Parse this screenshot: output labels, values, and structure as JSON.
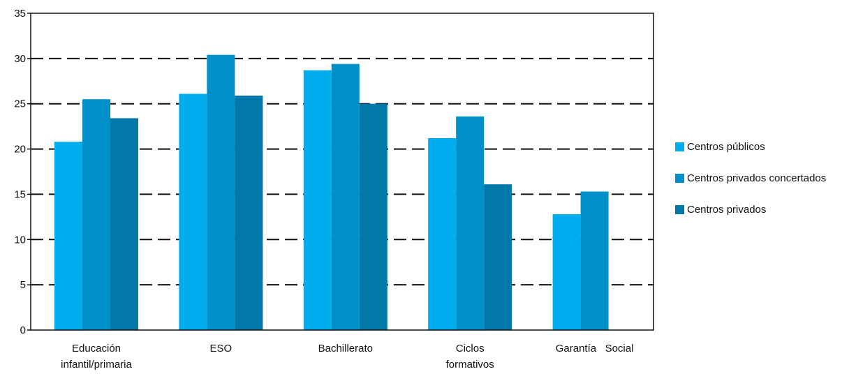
{
  "chart_data": {
    "type": "bar",
    "categories": [
      [
        "Educación",
        "infantil/primaria"
      ],
      [
        "ESO"
      ],
      [
        "Bachillerato"
      ],
      [
        "Ciclos",
        "formativos"
      ],
      [
        "Garantía   Social"
      ]
    ],
    "series": [
      {
        "name": "Centros públicos",
        "color": "#00aeef",
        "values": [
          20.8,
          26.1,
          28.7,
          21.2,
          12.8
        ]
      },
      {
        "name": "Centros privados concertados",
        "color": "#0090c9",
        "values": [
          25.5,
          30.4,
          29.4,
          23.6,
          15.3
        ]
      },
      {
        "name": "Centros privados",
        "color": "#0078a8",
        "values": [
          23.4,
          25.9,
          25.0,
          16.1,
          null
        ]
      }
    ],
    "ylim": [
      0,
      35
    ],
    "yticks": [
      "0",
      "5",
      "10",
      "15",
      "20",
      "25",
      "30",
      "35"
    ],
    "grid": "dashed horizontal",
    "legend_position": "right"
  }
}
